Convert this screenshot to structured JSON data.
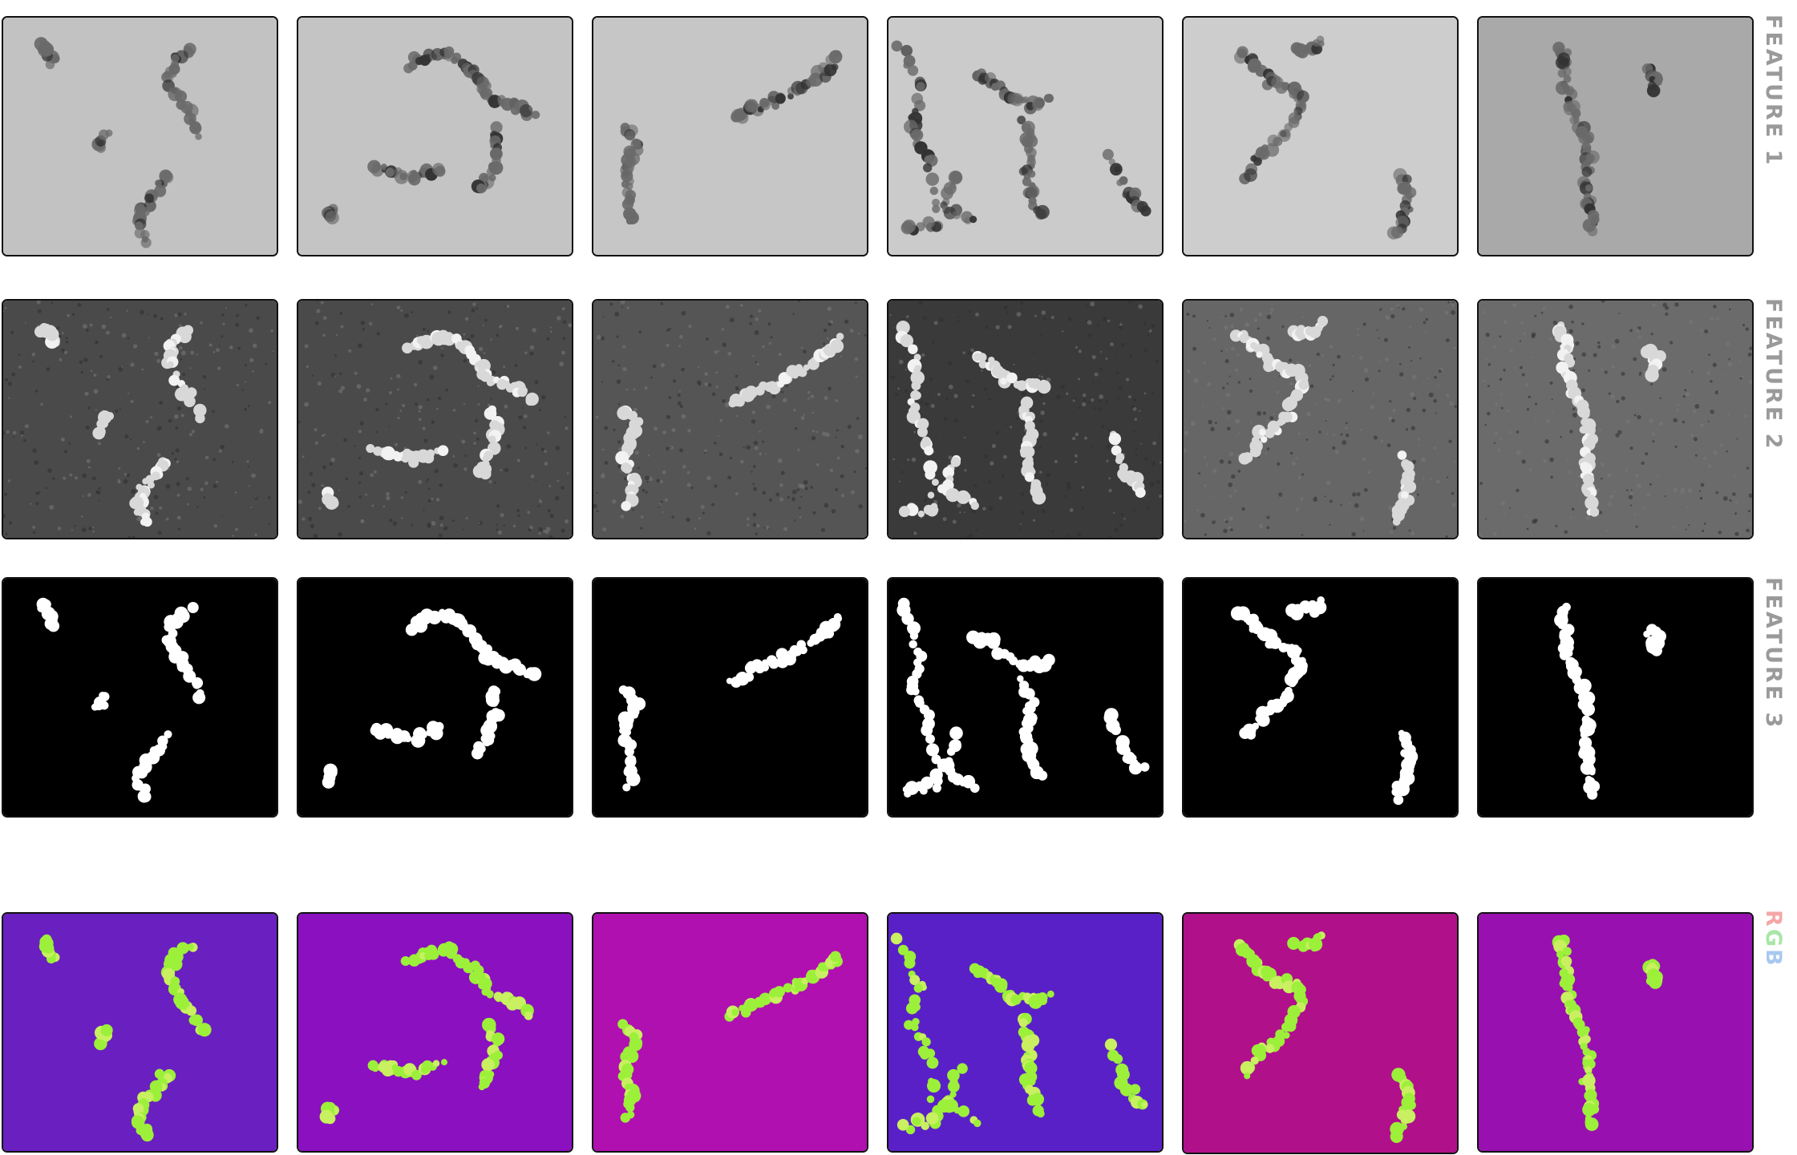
{
  "rows": [
    {
      "id": "feature1",
      "label": "FEATURE 1",
      "style": "tem"
    },
    {
      "id": "feature2",
      "label": "FEATURE 2",
      "style": "noise"
    },
    {
      "id": "feature3",
      "label": "FEATURE 3",
      "style": "mask"
    },
    {
      "id": "rgb",
      "label": "RGB",
      "style": "rgb"
    }
  ],
  "rgb_label": {
    "r": "R",
    "g": "G",
    "b": "B"
  },
  "colors": {
    "label_gray": "#9a9a9a",
    "r": "#f4a6a6",
    "g": "#a8e6a8",
    "b": "#a8c8f0",
    "mask_bg": "#000000",
    "rgb_particle": "#9cf03a"
  },
  "columns": 6
}
